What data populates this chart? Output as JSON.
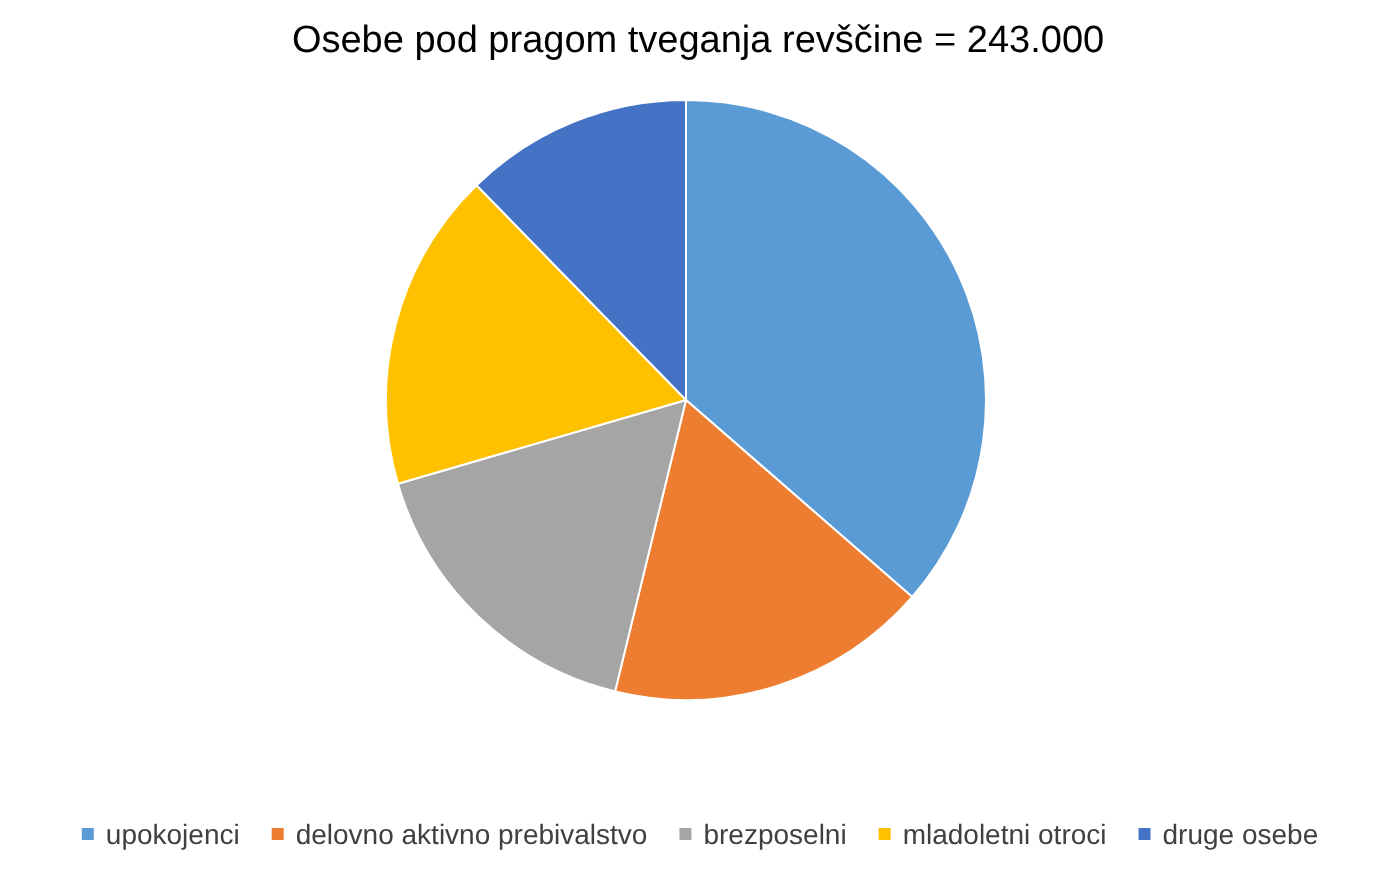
{
  "chart_data": {
    "type": "pie",
    "title": "Osebe pod pragom tveganja revščine = 243.000",
    "categories": [
      "upokojenci",
      "delovno aktivno prebivalstvo",
      "brezposelni",
      "mladoletni otroci",
      "druge osebe"
    ],
    "values": [
      36.4,
      17.4,
      16.7,
      17.2,
      12.3
    ],
    "colors": [
      "#5b9bd5",
      "#ed7d31",
      "#a5a5a5",
      "#ffc000",
      "#4472c4"
    ],
    "legend": "bottom"
  }
}
